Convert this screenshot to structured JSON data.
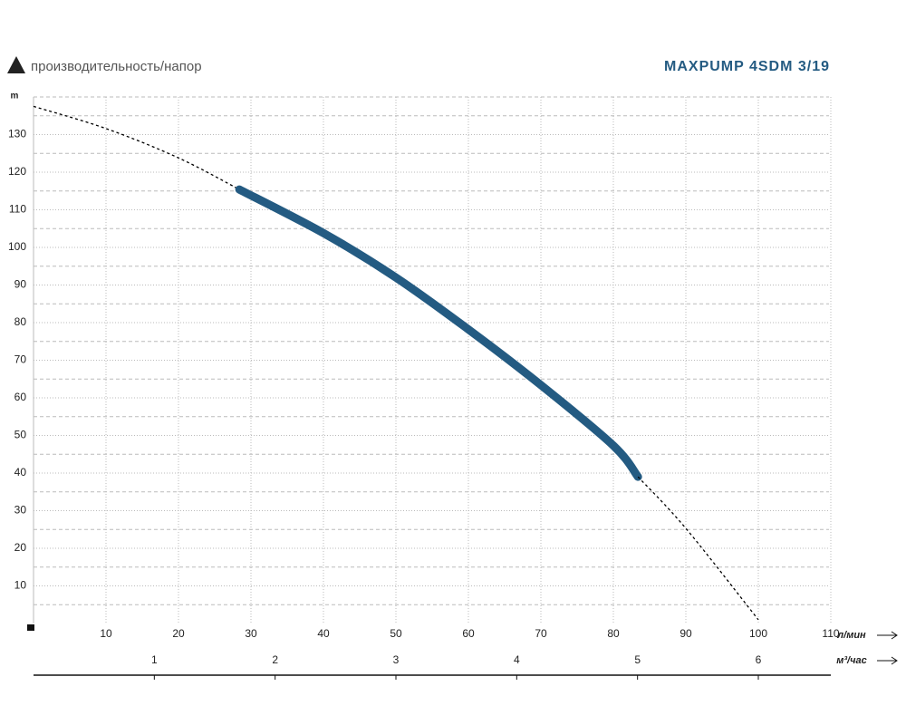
{
  "chart_data": {
    "type": "line",
    "title": "MAXPUMP 4SDM 3/19",
    "subtitle": "производительность/напор",
    "y_label": "m",
    "x_label": "л/мин",
    "x2_label": "м³/час",
    "xlim": [
      0,
      110
    ],
    "ylim": [
      0,
      140
    ],
    "xticks": [
      10,
      20,
      30,
      40,
      50,
      60,
      70,
      80,
      90,
      100,
      110
    ],
    "yticks": [
      10,
      20,
      30,
      40,
      50,
      60,
      70,
      80,
      90,
      100,
      110,
      120,
      130
    ],
    "y_minor_ticks": [
      5,
      15,
      25,
      35,
      45,
      55,
      65,
      75,
      85,
      95,
      105,
      115,
      125,
      135
    ],
    "x2lim": [
      0,
      6.6
    ],
    "x2ticks": [
      1,
      2,
      3,
      4,
      5,
      6
    ],
    "grid": true,
    "series": [
      {
        "x": [
          0,
          10,
          20,
          28.4
        ],
        "values": [
          137.5,
          131.6,
          123.8,
          115.4
        ],
        "color": "#000000",
        "dashed": true
      },
      {
        "x": [
          28.4,
          40,
          50,
          60,
          70,
          80,
          83.4
        ],
        "values": [
          115.4,
          103.8,
          92,
          78.2,
          63.4,
          47.3,
          39
        ],
        "color": "#245b82",
        "dashed": false
      },
      {
        "x": [
          83.4,
          90,
          100
        ],
        "values": [
          39,
          25.3,
          1
        ],
        "color": "#000000",
        "dashed": true
      }
    ]
  }
}
